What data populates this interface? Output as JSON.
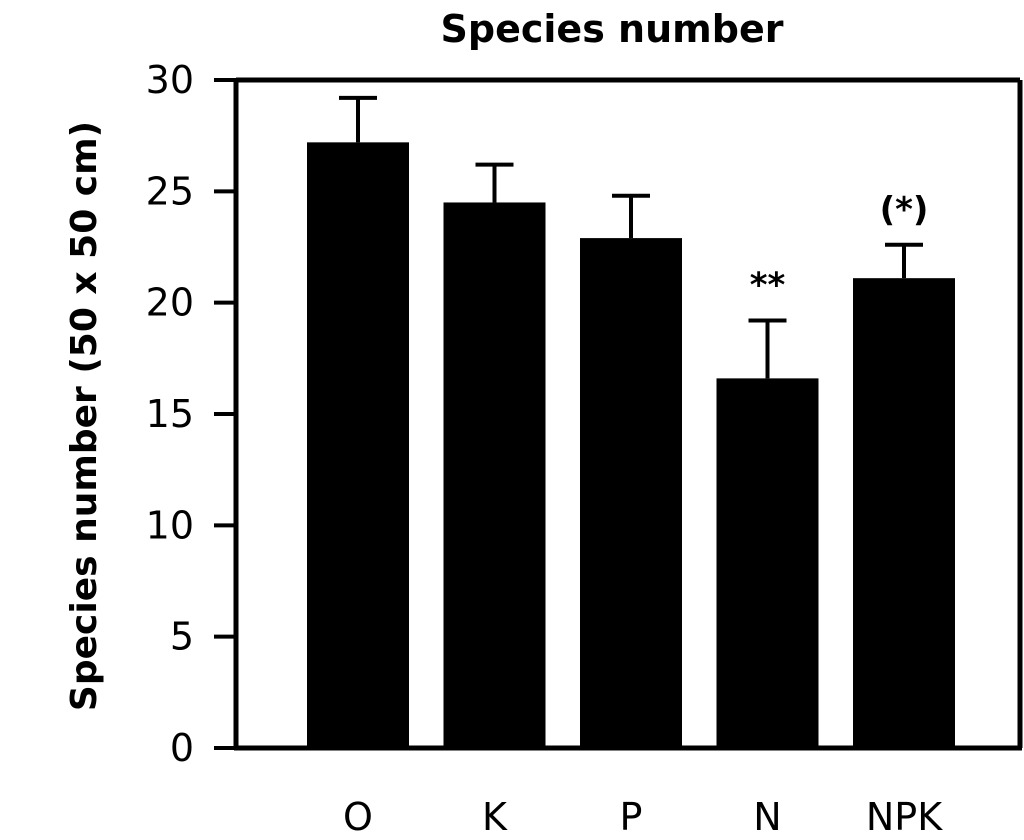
{
  "chart_data": {
    "type": "bar",
    "title": "Species number",
    "xlabel": "",
    "ylabel": "Species number (50 x 50 cm)",
    "ylim": [
      0,
      30
    ],
    "yticks": [
      0,
      5,
      10,
      15,
      20,
      25,
      30
    ],
    "categories": [
      "O",
      "K",
      "P",
      "N",
      "NPK"
    ],
    "values": [
      27.2,
      24.5,
      22.9,
      16.6,
      21.1
    ],
    "error_upper": [
      29.2,
      26.2,
      24.8,
      19.2,
      22.6
    ],
    "annotations": [
      "",
      "",
      "",
      "**",
      "(*)"
    ],
    "bar_color": "#000000",
    "grid": false,
    "legend": "none"
  }
}
